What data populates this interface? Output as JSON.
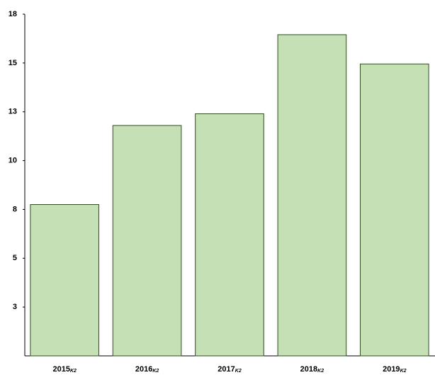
{
  "chart_data": {
    "type": "bar",
    "categories": [
      "2015",
      "2016",
      "2017",
      "2018",
      "2019"
    ],
    "category_suffix": "K2",
    "values": [
      7.75,
      11.8,
      12.4,
      16.45,
      14.95
    ],
    "color": "#c5e0b4",
    "ylim": [
      0,
      17.5
    ],
    "yticks": [
      {
        "value": 2.5,
        "label": "3"
      },
      5,
      {
        "value": 7.5,
        "label": "8"
      },
      10,
      {
        "value": 12.5,
        "label": "13"
      },
      15,
      {
        "value": 17.5,
        "label": "18"
      }
    ],
    "grid": false
  }
}
